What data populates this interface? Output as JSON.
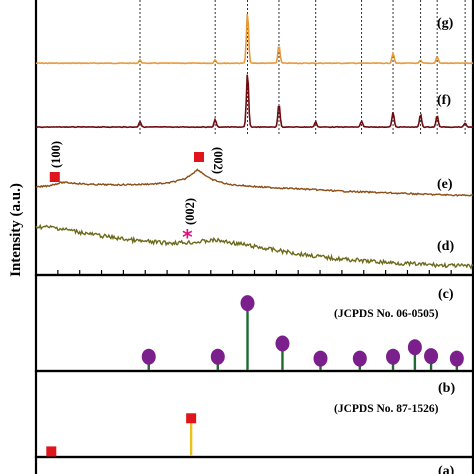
{
  "chart_data": {
    "type": "line",
    "ylabel": "Intensity (a.u.)",
    "panel_labels": {
      "g": "(g)",
      "f": "(f)",
      "e": "(e)",
      "d": "(d)",
      "c": "(c)",
      "b": "(b)",
      "a": "(a)"
    },
    "x_domain": [
      0,
      100
    ],
    "reference_lines_x": [
      23.8,
      41.0,
      48.4,
      55.6,
      64.0,
      74.5,
      81.7,
      88.0,
      91.8,
      98.2
    ],
    "series": [
      {
        "key": "g",
        "color": "#e89a3a",
        "baseline": 0.5,
        "peaks": [
          [
            23.8,
            0.06
          ],
          [
            41.0,
            0.06
          ],
          [
            48.4,
            0.92
          ],
          [
            55.6,
            0.32
          ],
          [
            81.7,
            0.18
          ],
          [
            88.0,
            0.05
          ],
          [
            91.8,
            0.12
          ]
        ]
      },
      {
        "key": "f",
        "color": "#6e0c12",
        "baseline": 0.12,
        "peaks": [
          [
            23.8,
            0.1
          ],
          [
            41.0,
            0.13
          ],
          [
            48.4,
            0.95
          ],
          [
            55.6,
            0.4
          ],
          [
            64.0,
            0.09
          ],
          [
            74.5,
            0.1
          ],
          [
            81.7,
            0.26
          ],
          [
            88.0,
            0.22
          ],
          [
            91.8,
            0.2
          ],
          [
            98.2,
            0.07
          ]
        ]
      },
      {
        "key": "e",
        "color": "#8a4e16",
        "profile": [
          [
            0,
            0.32
          ],
          [
            3,
            0.36
          ],
          [
            6,
            0.44
          ],
          [
            9,
            0.42
          ],
          [
            12,
            0.39
          ],
          [
            18,
            0.38
          ],
          [
            24,
            0.39
          ],
          [
            30,
            0.42
          ],
          [
            34,
            0.52
          ],
          [
            36,
            0.68
          ],
          [
            37,
            0.76
          ],
          [
            38,
            0.68
          ],
          [
            40,
            0.52
          ],
          [
            44,
            0.39
          ],
          [
            52,
            0.32
          ],
          [
            60,
            0.28
          ],
          [
            70,
            0.22
          ],
          [
            80,
            0.18
          ],
          [
            90,
            0.14
          ],
          [
            100,
            0.11
          ]
        ]
      },
      {
        "key": "d",
        "color": "#6e6a1c",
        "profile": [
          [
            0,
            0.8
          ],
          [
            4,
            0.78
          ],
          [
            8,
            0.73
          ],
          [
            12,
            0.67
          ],
          [
            18,
            0.6
          ],
          [
            24,
            0.54
          ],
          [
            30,
            0.51
          ],
          [
            36,
            0.52
          ],
          [
            41,
            0.56
          ],
          [
            46,
            0.5
          ],
          [
            52,
            0.42
          ],
          [
            60,
            0.32
          ],
          [
            68,
            0.24
          ],
          [
            76,
            0.19
          ],
          [
            84,
            0.15
          ],
          [
            92,
            0.12
          ],
          [
            100,
            0.1
          ]
        ]
      }
    ],
    "annotations": [
      {
        "panel": "e",
        "text": "(100)",
        "x": 4.3
      },
      {
        "panel": "e",
        "text": "(002)",
        "x": 37.3
      },
      {
        "panel": "d",
        "text": "(002)",
        "x": 34.8
      }
    ],
    "reference_c": {
      "label": "(JCPDS No. 06-0505)",
      "stem_color": "#1c6b2f",
      "marker_color": "#7b1f8c",
      "sticks": [
        [
          25.8,
          0.1
        ],
        [
          41.6,
          0.1
        ],
        [
          48.4,
          0.95
        ],
        [
          56.4,
          0.31
        ],
        [
          65.1,
          0.07
        ],
        [
          74.1,
          0.07
        ],
        [
          81.7,
          0.1
        ],
        [
          86.7,
          0.25
        ],
        [
          90.4,
          0.11
        ],
        [
          96.3,
          0.07
        ],
        [
          104.0,
          0.05
        ]
      ]
    },
    "reference_b": {
      "label": "(JCPDS No. 87-1526)",
      "stem_color": "#e9c21c",
      "marker_color": "#e0141c",
      "sticks": [
        [
          3.5,
          0.1
        ],
        [
          35.5,
          0.82
        ]
      ]
    }
  }
}
